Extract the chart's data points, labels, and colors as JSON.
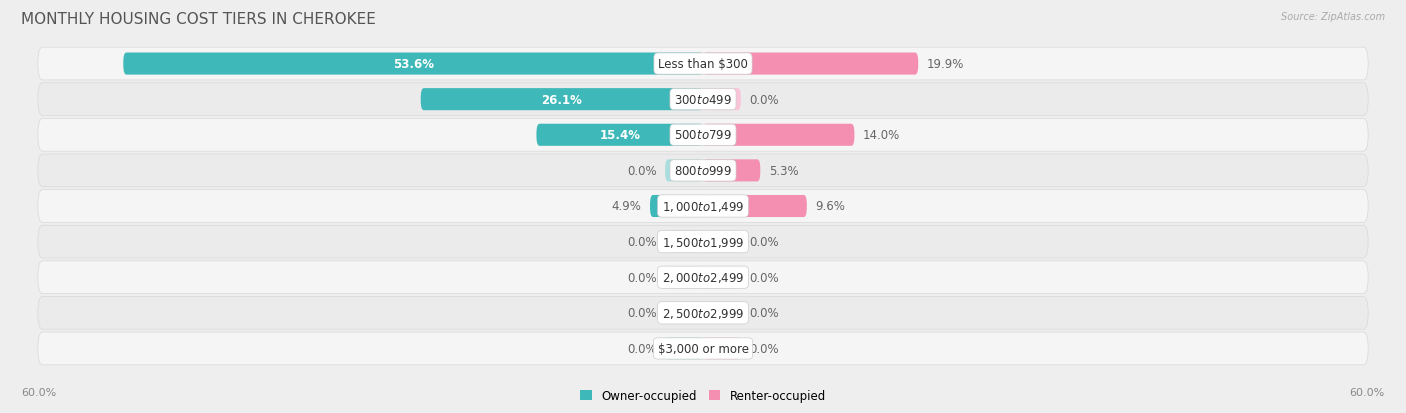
{
  "title": "MONTHLY HOUSING COST TIERS IN CHEROKEE",
  "source": "Source: ZipAtlas.com",
  "categories": [
    "Less than $300",
    "$300 to $499",
    "$500 to $799",
    "$800 to $999",
    "$1,000 to $1,499",
    "$1,500 to $1,999",
    "$2,000 to $2,499",
    "$2,500 to $2,999",
    "$3,000 or more"
  ],
  "owner_values": [
    53.6,
    26.1,
    15.4,
    0.0,
    4.9,
    0.0,
    0.0,
    0.0,
    0.0
  ],
  "renter_values": [
    19.9,
    0.0,
    14.0,
    5.3,
    9.6,
    0.0,
    0.0,
    0.0,
    0.0
  ],
  "owner_color": "#3eb8b8",
  "renter_color": "#f48fb1",
  "owner_color_light": "#a8dede",
  "renter_color_light": "#f9c4d8",
  "max_val": 60.0,
  "stub_val": 3.5,
  "axis_label": "60.0%",
  "background_color": "#eeeeee",
  "row_bg_color": "#f8f8f8",
  "row_alt_color": "#f0f0f0",
  "title_color": "#555555",
  "title_fontsize": 11,
  "value_fontsize": 8.5,
  "cat_fontsize": 8.5,
  "bar_height": 0.62,
  "figsize": [
    14.06,
    4.14
  ]
}
